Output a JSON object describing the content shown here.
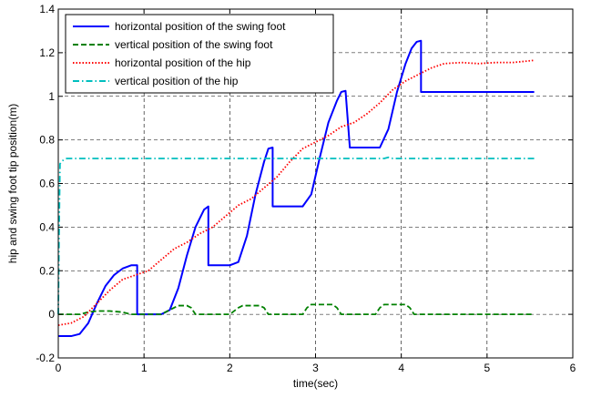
{
  "chart_data": {
    "type": "line",
    "title": "",
    "xlabel": "time(sec)",
    "ylabel": "hip and swing foot tip position(m)",
    "xlim": [
      0,
      6
    ],
    "ylim": [
      -0.2,
      1.4
    ],
    "xticks": [
      0,
      1,
      2,
      3,
      4,
      5,
      6
    ],
    "yticks": [
      -0.2,
      0,
      0.2,
      0.4,
      0.6,
      0.8,
      1,
      1.2,
      1.4
    ],
    "xtick_labels": [
      "0",
      "1",
      "2",
      "3",
      "4",
      "5",
      "6"
    ],
    "ytick_labels": [
      "-0.2",
      "0",
      "0.2",
      "0.4",
      "0.6",
      "0.8",
      "1",
      "1.2",
      "1.4"
    ],
    "grid": true,
    "legend_position": "top-left",
    "series": [
      {
        "name": "horizontal position of the swing foot",
        "color": "#0000ff",
        "dash": "solid",
        "points": [
          [
            0,
            -0.1
          ],
          [
            0.15,
            -0.1
          ],
          [
            0.25,
            -0.09
          ],
          [
            0.35,
            -0.04
          ],
          [
            0.45,
            0.05
          ],
          [
            0.55,
            0.13
          ],
          [
            0.65,
            0.18
          ],
          [
            0.75,
            0.21
          ],
          [
            0.85,
            0.225
          ],
          [
            0.92,
            0.225
          ],
          [
            0.92,
            0
          ],
          [
            1.0,
            0
          ],
          [
            1.1,
            0
          ],
          [
            1.2,
            0
          ],
          [
            1.3,
            0.02
          ],
          [
            1.4,
            0.12
          ],
          [
            1.5,
            0.27
          ],
          [
            1.6,
            0.4
          ],
          [
            1.7,
            0.48
          ],
          [
            1.75,
            0.495
          ],
          [
            1.75,
            0.225
          ],
          [
            2.0,
            0.225
          ],
          [
            2.1,
            0.24
          ],
          [
            2.2,
            0.36
          ],
          [
            2.3,
            0.55
          ],
          [
            2.4,
            0.7
          ],
          [
            2.45,
            0.76
          ],
          [
            2.5,
            0.765
          ],
          [
            2.5,
            0.495
          ],
          [
            2.85,
            0.495
          ],
          [
            2.95,
            0.55
          ],
          [
            3.05,
            0.72
          ],
          [
            3.15,
            0.88
          ],
          [
            3.25,
            0.98
          ],
          [
            3.3,
            1.02
          ],
          [
            3.35,
            1.025
          ],
          [
            3.4,
            0.765
          ],
          [
            3.75,
            0.765
          ],
          [
            3.85,
            0.85
          ],
          [
            3.95,
            1.02
          ],
          [
            4.05,
            1.15
          ],
          [
            4.12,
            1.22
          ],
          [
            4.18,
            1.25
          ],
          [
            4.23,
            1.255
          ],
          [
            4.23,
            1.02
          ],
          [
            5.55,
            1.02
          ]
        ]
      },
      {
        "name": "vertical position of the swing foot",
        "color": "#008000",
        "dash": "dashed",
        "points": [
          [
            0,
            0
          ],
          [
            0.25,
            0
          ],
          [
            0.35,
            0.01
          ],
          [
            0.45,
            0.015
          ],
          [
            0.6,
            0.015
          ],
          [
            0.75,
            0.01
          ],
          [
            0.85,
            0
          ],
          [
            1.0,
            0
          ],
          [
            1.2,
            0
          ],
          [
            1.3,
            0.02
          ],
          [
            1.4,
            0.04
          ],
          [
            1.5,
            0.04
          ],
          [
            1.55,
            0.03
          ],
          [
            1.6,
            0
          ],
          [
            2.0,
            0
          ],
          [
            2.1,
            0.03
          ],
          [
            2.15,
            0.04
          ],
          [
            2.35,
            0.04
          ],
          [
            2.4,
            0.03
          ],
          [
            2.45,
            0
          ],
          [
            2.85,
            0
          ],
          [
            2.9,
            0.03
          ],
          [
            2.95,
            0.045
          ],
          [
            3.2,
            0.045
          ],
          [
            3.25,
            0.03
          ],
          [
            3.3,
            0
          ],
          [
            3.7,
            0
          ],
          [
            3.75,
            0.03
          ],
          [
            3.8,
            0.045
          ],
          [
            4.05,
            0.045
          ],
          [
            4.1,
            0.03
          ],
          [
            4.15,
            0
          ],
          [
            5.55,
            0
          ]
        ]
      },
      {
        "name": "horizontal position of the hip",
        "color": "#ff0000",
        "dash": "dotted",
        "points": [
          [
            0,
            -0.05
          ],
          [
            0.15,
            -0.04
          ],
          [
            0.3,
            -0.01
          ],
          [
            0.45,
            0.05
          ],
          [
            0.6,
            0.11
          ],
          [
            0.75,
            0.16
          ],
          [
            0.9,
            0.18
          ],
          [
            1.05,
            0.2
          ],
          [
            1.2,
            0.25
          ],
          [
            1.35,
            0.3
          ],
          [
            1.5,
            0.33
          ],
          [
            1.65,
            0.37
          ],
          [
            1.8,
            0.4
          ],
          [
            1.95,
            0.45
          ],
          [
            2.1,
            0.5
          ],
          [
            2.25,
            0.53
          ],
          [
            2.4,
            0.58
          ],
          [
            2.55,
            0.63
          ],
          [
            2.7,
            0.7
          ],
          [
            2.85,
            0.76
          ],
          [
            3.0,
            0.79
          ],
          [
            3.15,
            0.82
          ],
          [
            3.3,
            0.86
          ],
          [
            3.45,
            0.88
          ],
          [
            3.6,
            0.92
          ],
          [
            3.75,
            0.97
          ],
          [
            3.9,
            1.03
          ],
          [
            4.05,
            1.07
          ],
          [
            4.2,
            1.1
          ],
          [
            4.35,
            1.13
          ],
          [
            4.5,
            1.15
          ],
          [
            4.7,
            1.155
          ],
          [
            4.9,
            1.15
          ],
          [
            5.1,
            1.155
          ],
          [
            5.3,
            1.155
          ],
          [
            5.55,
            1.165
          ]
        ]
      },
      {
        "name": "vertical position of the hip",
        "color": "#00bfbf",
        "dash": "dashdot",
        "points": [
          [
            0,
            0
          ],
          [
            0.01,
            0.4
          ],
          [
            0.02,
            0.69
          ],
          [
            0.05,
            0.705
          ],
          [
            0.1,
            0.715
          ],
          [
            0.5,
            0.715
          ],
          [
            1.0,
            0.715
          ],
          [
            2.0,
            0.715
          ],
          [
            3.0,
            0.715
          ],
          [
            3.8,
            0.715
          ],
          [
            3.85,
            0.72
          ],
          [
            3.9,
            0.715
          ],
          [
            4.5,
            0.715
          ],
          [
            5.55,
            0.715
          ]
        ]
      }
    ]
  }
}
